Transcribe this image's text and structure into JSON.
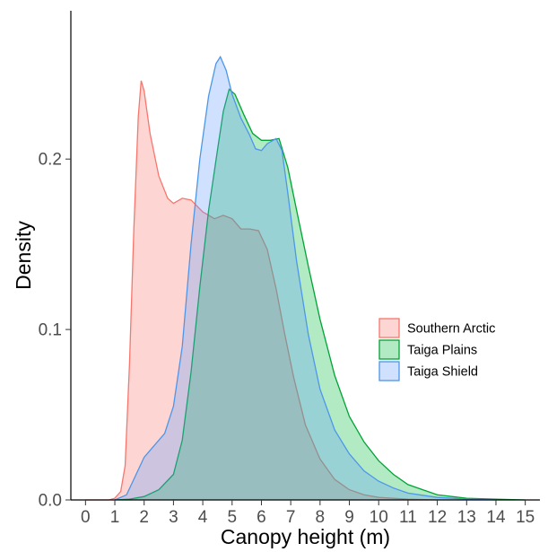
{
  "chart_data": {
    "type": "area",
    "title": "",
    "xlabel": "Canopy height (m)",
    "ylabel": "Density",
    "xlim": [
      -0.5,
      15.5
    ],
    "ylim": [
      0,
      0.287
    ],
    "x_ticks": [
      "0",
      "1",
      "2",
      "3",
      "4",
      "5",
      "6",
      "7",
      "8",
      "9",
      "10",
      "11",
      "12",
      "13",
      "14",
      "15"
    ],
    "y_ticks": [
      "0.0",
      "0.1",
      "0.2"
    ],
    "grid": false,
    "legend_position": "right",
    "series": [
      {
        "name": "Southern Arctic",
        "stroke": "#f8766d",
        "fill": "#f8766d",
        "points": [
          [
            0,
            0
          ],
          [
            0.8,
            0
          ],
          [
            1.0,
            0.001
          ],
          [
            1.2,
            0.005
          ],
          [
            1.35,
            0.02
          ],
          [
            1.5,
            0.08
          ],
          [
            1.65,
            0.16
          ],
          [
            1.8,
            0.225
          ],
          [
            1.9,
            0.246
          ],
          [
            2.0,
            0.24
          ],
          [
            2.2,
            0.215
          ],
          [
            2.5,
            0.19
          ],
          [
            2.8,
            0.177
          ],
          [
            3.0,
            0.174
          ],
          [
            3.3,
            0.177
          ],
          [
            3.6,
            0.176
          ],
          [
            4.0,
            0.169
          ],
          [
            4.4,
            0.165
          ],
          [
            4.7,
            0.167
          ],
          [
            5.0,
            0.165
          ],
          [
            5.3,
            0.159
          ],
          [
            5.6,
            0.159
          ],
          [
            5.9,
            0.158
          ],
          [
            6.2,
            0.147
          ],
          [
            6.5,
            0.124
          ],
          [
            6.8,
            0.097
          ],
          [
            7.1,
            0.072
          ],
          [
            7.5,
            0.044
          ],
          [
            8.0,
            0.024
          ],
          [
            8.5,
            0.012
          ],
          [
            9.0,
            0.006
          ],
          [
            9.5,
            0.003
          ],
          [
            10.0,
            0.0015
          ],
          [
            11.0,
            0.0004
          ],
          [
            12.0,
            0
          ]
        ]
      },
      {
        "name": "Taiga Plains",
        "stroke": "#00a336",
        "fill": "#00ba38",
        "points": [
          [
            1.0,
            0
          ],
          [
            1.5,
            0.0005
          ],
          [
            2.0,
            0.002
          ],
          [
            2.5,
            0.006
          ],
          [
            3.0,
            0.015
          ],
          [
            3.3,
            0.035
          ],
          [
            3.6,
            0.075
          ],
          [
            3.9,
            0.125
          ],
          [
            4.2,
            0.17
          ],
          [
            4.5,
            0.205
          ],
          [
            4.7,
            0.228
          ],
          [
            4.9,
            0.241
          ],
          [
            5.1,
            0.238
          ],
          [
            5.4,
            0.226
          ],
          [
            5.7,
            0.215
          ],
          [
            6.0,
            0.211
          ],
          [
            6.3,
            0.211
          ],
          [
            6.6,
            0.212
          ],
          [
            6.9,
            0.195
          ],
          [
            7.2,
            0.17
          ],
          [
            7.6,
            0.137
          ],
          [
            8.0,
            0.106
          ],
          [
            8.5,
            0.073
          ],
          [
            9.0,
            0.049
          ],
          [
            9.5,
            0.034
          ],
          [
            10.0,
            0.023
          ],
          [
            10.5,
            0.015
          ],
          [
            11.0,
            0.009
          ],
          [
            11.5,
            0.006
          ],
          [
            12.0,
            0.003
          ],
          [
            13.0,
            0.001
          ],
          [
            14.0,
            0.0004
          ],
          [
            15.0,
            0
          ]
        ]
      },
      {
        "name": "Taiga Shield",
        "stroke": "#4d96ea",
        "fill": "#619cff",
        "points": [
          [
            1.0,
            0
          ],
          [
            1.4,
            0.003
          ],
          [
            1.7,
            0.014
          ],
          [
            2.0,
            0.025
          ],
          [
            2.3,
            0.031
          ],
          [
            2.7,
            0.039
          ],
          [
            3.0,
            0.055
          ],
          [
            3.3,
            0.09
          ],
          [
            3.6,
            0.15
          ],
          [
            3.9,
            0.2
          ],
          [
            4.2,
            0.237
          ],
          [
            4.45,
            0.256
          ],
          [
            4.6,
            0.26
          ],
          [
            4.8,
            0.252
          ],
          [
            5.0,
            0.238
          ],
          [
            5.3,
            0.224
          ],
          [
            5.6,
            0.214
          ],
          [
            5.8,
            0.206
          ],
          [
            6.0,
            0.205
          ],
          [
            6.2,
            0.209
          ],
          [
            6.5,
            0.212
          ],
          [
            6.7,
            0.205
          ],
          [
            6.9,
            0.18
          ],
          [
            7.2,
            0.14
          ],
          [
            7.6,
            0.097
          ],
          [
            8.0,
            0.065
          ],
          [
            8.5,
            0.041
          ],
          [
            9.0,
            0.027
          ],
          [
            9.5,
            0.017
          ],
          [
            10.0,
            0.011
          ],
          [
            10.5,
            0.007
          ],
          [
            11.0,
            0.004
          ],
          [
            12.0,
            0.0015
          ],
          [
            13.0,
            0.0005
          ],
          [
            14.0,
            0
          ]
        ]
      }
    ]
  }
}
